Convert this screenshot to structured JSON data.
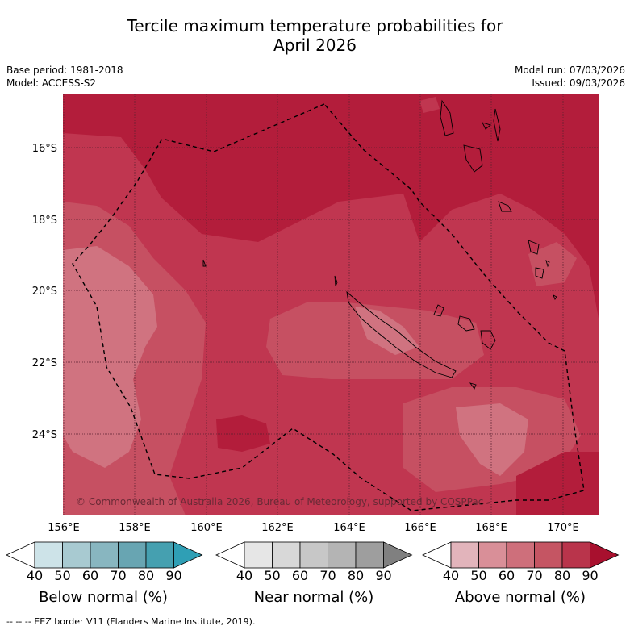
{
  "title_line1": "Tercile maximum temperature probabilities for",
  "title_line2": "April 2026",
  "base_period": "Base period: 1981-2018",
  "model": "Model: ACCESS-S2",
  "model_run": "Model run: 07/03/2026",
  "issued": "Issued: 09/03/2026",
  "map": {
    "lat_labels": [
      "16°S",
      "18°S",
      "20°S",
      "22°S",
      "24°S"
    ],
    "lon_labels": [
      "156°E",
      "158°E",
      "160°E",
      "162°E",
      "164°E",
      "166°E",
      "168°E",
      "170°E"
    ],
    "copyright": "© Commonwealth of Australia 2026, Bureau of Meteorology, supported by COSPPac"
  },
  "colorbars": [
    {
      "label": "Below normal (%)",
      "ticks": [
        "40",
        "50",
        "60",
        "70",
        "80",
        "90"
      ],
      "colors": [
        "#ffffff",
        "#cde3e8",
        "#a8cad1",
        "#88b6c0",
        "#68a5b2",
        "#45a0b0",
        "#2f9fb5"
      ]
    },
    {
      "label": "Near normal (%)",
      "ticks": [
        "40",
        "50",
        "60",
        "70",
        "80",
        "90"
      ],
      "colors": [
        "#ffffff",
        "#e6e6e6",
        "#d8d8d8",
        "#c7c7c7",
        "#b4b4b4",
        "#9e9e9e",
        "#808080"
      ]
    },
    {
      "label": "Above normal (%)",
      "ticks": [
        "40",
        "50",
        "60",
        "70",
        "80",
        "90"
      ],
      "colors": [
        "#ffffff",
        "#e2b4bb",
        "#d98f98",
        "#ce6f7b",
        "#c55563",
        "#b9344b",
        "#a8102e"
      ]
    }
  ],
  "footer": "--  --  -- EEZ border V11 (Flanders Marine Institute, 2019)."
}
